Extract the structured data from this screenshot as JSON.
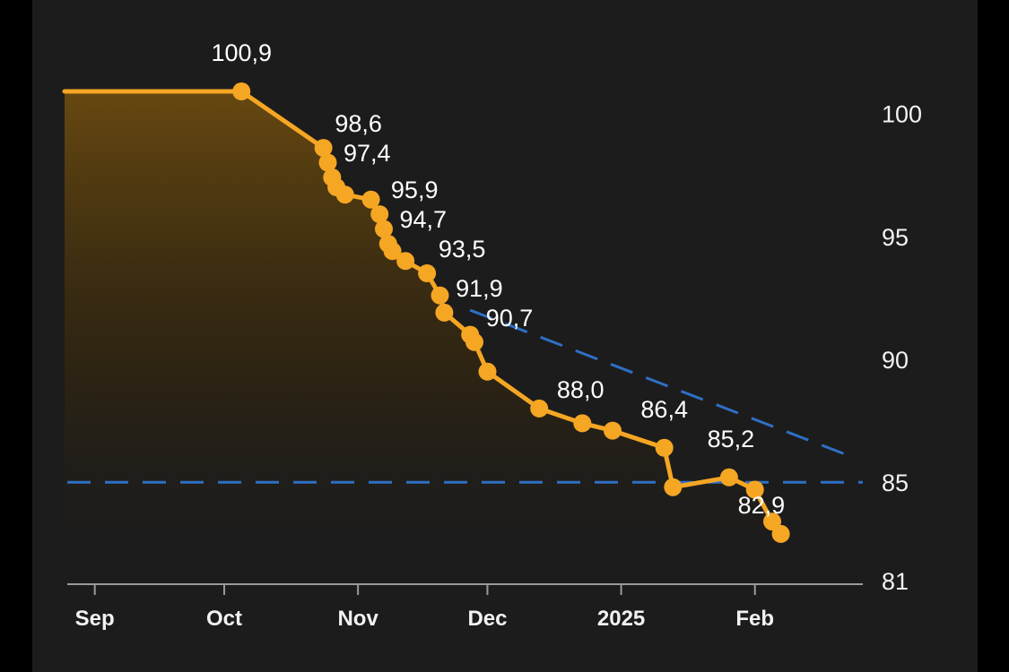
{
  "chart_data": {
    "type": "line",
    "title": "",
    "xlabel": "",
    "ylabel": "",
    "x_ticks": [
      {
        "date": "2024-09-01",
        "label": "Sep"
      },
      {
        "date": "2024-10-01",
        "label": "Oct"
      },
      {
        "date": "2024-11-01",
        "label": "Nov"
      },
      {
        "date": "2024-12-01",
        "label": "Dec"
      },
      {
        "date": "2025-01-01",
        "label": "2025"
      },
      {
        "date": "2025-02-01",
        "label": "Feb"
      }
    ],
    "y_ticks": [
      100,
      95,
      90,
      85,
      81
    ],
    "xlim": [
      "2024-08-25",
      "2025-02-26"
    ],
    "ylim": [
      81,
      101.7
    ],
    "colors": {
      "line": "#f5a623",
      "fill": "#6b4a10",
      "target": "#2e6fc4",
      "background": "#1c1c1c",
      "text": "#f2f2f2"
    },
    "series": [
      {
        "points": [
          {
            "x": "2024-08-25",
            "y": 100.9
          },
          {
            "x": "2024-10-05",
            "y": 100.9,
            "label": "100,9",
            "marker": true
          },
          {
            "x": "2024-10-24",
            "y": 98.6,
            "label": "98,6",
            "marker": true
          },
          {
            "x": "2024-10-25",
            "y": 98.0,
            "marker": true
          },
          {
            "x": "2024-10-26",
            "y": 97.4,
            "label": "97,4",
            "marker": true
          },
          {
            "x": "2024-10-27",
            "y": 97.0,
            "marker": true
          },
          {
            "x": "2024-10-29",
            "y": 96.7,
            "marker": true
          },
          {
            "x": "2024-11-04",
            "y": 96.5,
            "marker": true
          },
          {
            "x": "2024-11-06",
            "y": 95.9,
            "label": "95,9",
            "marker": true
          },
          {
            "x": "2024-11-07",
            "y": 95.3,
            "marker": true
          },
          {
            "x": "2024-11-08",
            "y": 94.7,
            "label": "94,7",
            "marker": true
          },
          {
            "x": "2024-11-09",
            "y": 94.4,
            "marker": true
          },
          {
            "x": "2024-11-12",
            "y": 94.0,
            "marker": true
          },
          {
            "x": "2024-11-17",
            "y": 93.5,
            "label": "93,5",
            "marker": true
          },
          {
            "x": "2024-11-20",
            "y": 92.6,
            "marker": true
          },
          {
            "x": "2024-11-21",
            "y": 91.9,
            "label": "91,9",
            "marker": true
          },
          {
            "x": "2024-11-27",
            "y": 91.0,
            "marker": true
          },
          {
            "x": "2024-11-28",
            "y": 90.7,
            "label": "90,7",
            "marker": true
          },
          {
            "x": "2024-12-01",
            "y": 89.5,
            "marker": true
          },
          {
            "x": "2024-12-13",
            "y": 88.0,
            "label": "88,0",
            "marker": true
          },
          {
            "x": "2024-12-23",
            "y": 87.4,
            "marker": true
          },
          {
            "x": "2024-12-30",
            "y": 87.1,
            "marker": true
          },
          {
            "x": "2025-01-11",
            "y": 86.4,
            "label": "86,4",
            "marker": true
          },
          {
            "x": "2025-01-13",
            "y": 84.8,
            "marker": true
          },
          {
            "x": "2025-01-26",
            "y": 85.2,
            "label": "85,2",
            "marker": true
          },
          {
            "x": "2025-02-01",
            "y": 84.7,
            "marker": true
          },
          {
            "x": "2025-02-05",
            "y": 83.4,
            "marker": true
          },
          {
            "x": "2025-02-07",
            "y": 82.9,
            "label": "82,9",
            "marker": true
          }
        ]
      }
    ],
    "reference_lines": [
      {
        "type": "horizontal",
        "y": 85,
        "style": "dashed"
      },
      {
        "type": "trend",
        "from": {
          "x": "2024-11-27",
          "y": 92.0
        },
        "to": {
          "x": "2025-02-24",
          "y": 86.0
        },
        "style": "dashed"
      }
    ],
    "grid": false,
    "legend": "none"
  }
}
